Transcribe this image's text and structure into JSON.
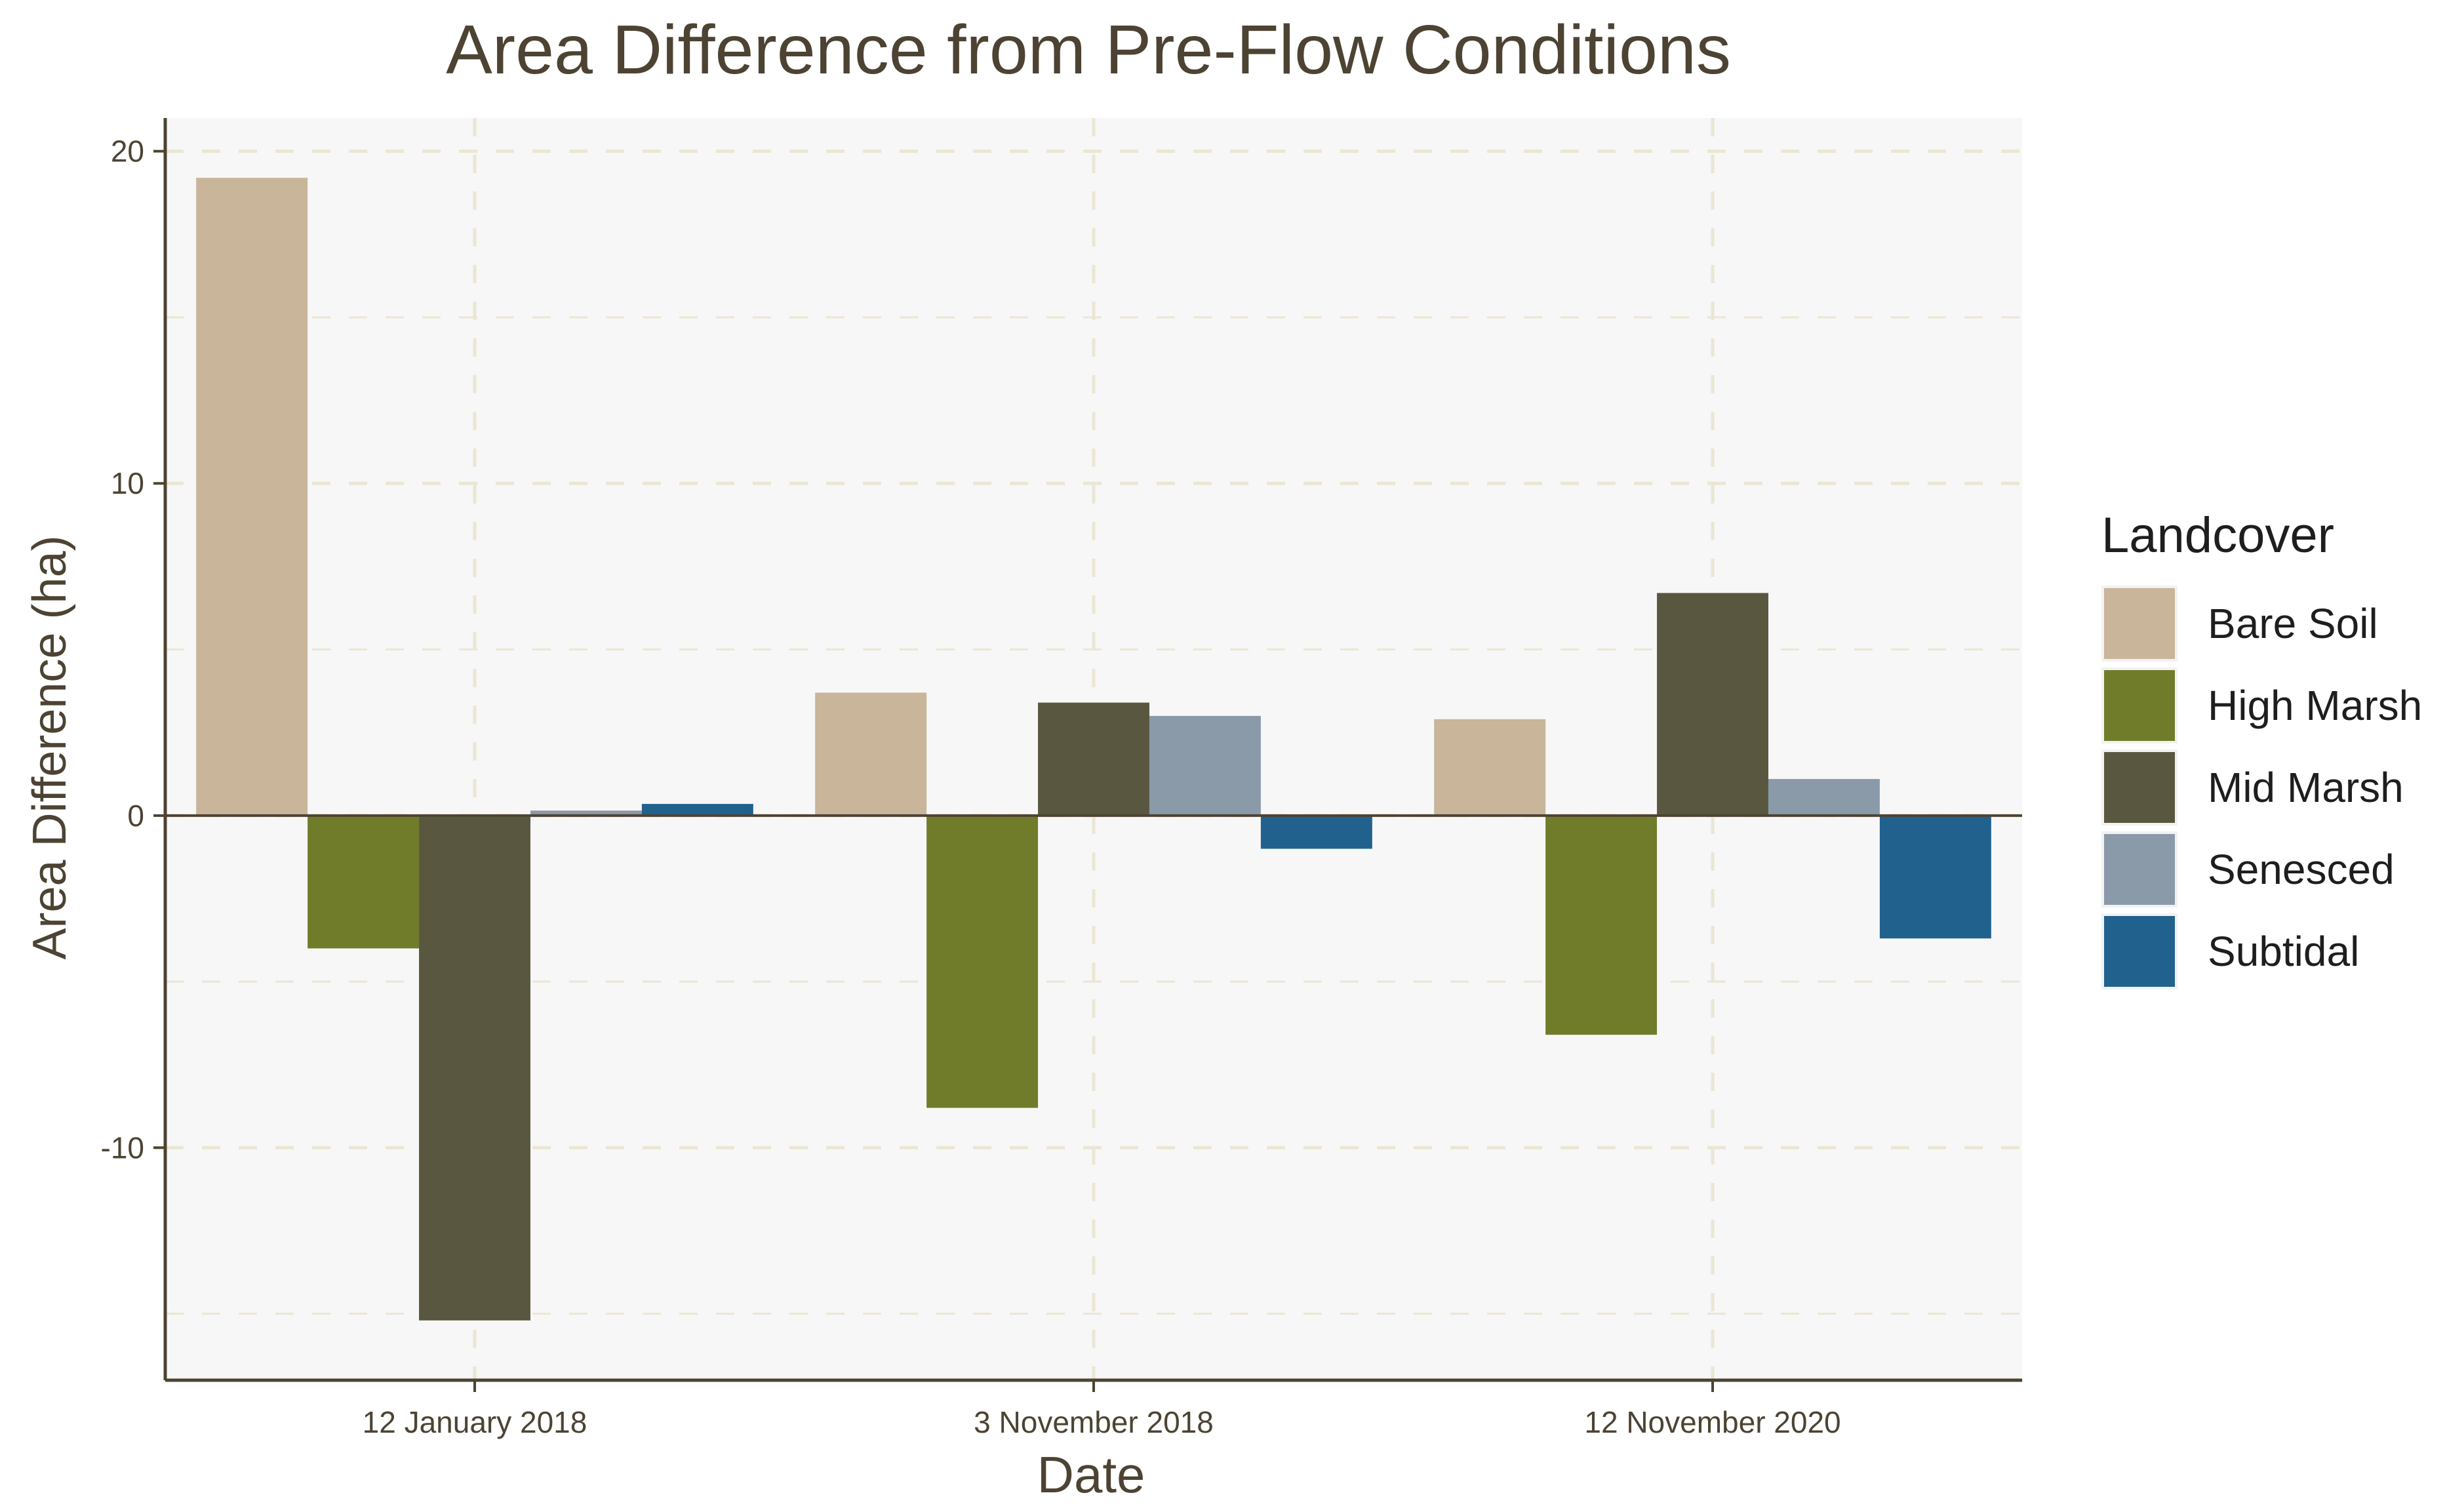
{
  "chart_data": {
    "type": "bar",
    "title": "Area Difference from Pre-Flow Conditions",
    "xlabel": "Date",
    "ylabel": "Area Difference (ha)",
    "categories": [
      "12 January 2018",
      "3 November 2018",
      "12 November 2020"
    ],
    "ylim": [
      -17,
      21
    ],
    "yticks": [
      -10,
      0,
      10,
      20
    ],
    "yticks_minor": [
      -15,
      -5,
      5,
      15
    ],
    "grid": true,
    "legend": {
      "title": "Landcover",
      "position": "right"
    },
    "series": [
      {
        "name": "Bare Soil",
        "color": "#c8b59a",
        "values": [
          19.2,
          3.7,
          2.9
        ]
      },
      {
        "name": "High Marsh",
        "color": "#717c2b",
        "values": [
          -4.0,
          -8.8,
          -6.6
        ]
      },
      {
        "name": "Mid Marsh",
        "color": "#59573f",
        "values": [
          -15.2,
          3.4,
          6.7
        ]
      },
      {
        "name": "Senesced",
        "color": "#8a9aa9",
        "values": [
          0.15,
          3.0,
          1.1
        ]
      },
      {
        "name": "Subtidal",
        "color": "#21618e",
        "values": [
          0.35,
          -1.0,
          -3.7
        ]
      }
    ],
    "colors": {
      "panel_bg": "#f7f7f7",
      "grid": "#ebe6d3",
      "axis": "#4d4333",
      "zero_line": "#4d4333"
    }
  }
}
